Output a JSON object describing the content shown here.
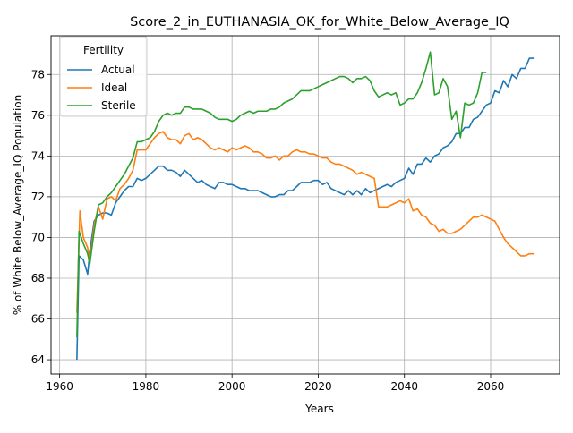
{
  "chart_data": {
    "type": "line",
    "title": "Score_2_in_EUTHANASIA_OK_for_White_Below_Average_IQ",
    "xlabel": "Years",
    "ylabel": "% of White Below_Average_IQ Population",
    "xlim": [
      1958,
      2076
    ],
    "ylim": [
      63.3,
      79.9
    ],
    "xticks": [
      1960,
      1980,
      2000,
      2020,
      2040,
      2060
    ],
    "yticks": [
      64,
      66,
      68,
      70,
      72,
      74,
      76,
      78
    ],
    "grid": true,
    "legend": {
      "title": "Fertility",
      "placement": "top-left"
    },
    "series": [
      {
        "name": "Actual",
        "color": "#1f77b4",
        "points": [
          [
            1964,
            64.0
          ],
          [
            1964.5,
            69.1
          ],
          [
            1965.5,
            68.9
          ],
          [
            1966.5,
            68.2
          ],
          [
            1967,
            69.3
          ],
          [
            1968,
            70.8
          ],
          [
            1969,
            71.1
          ],
          [
            1970,
            71.2
          ],
          [
            1971,
            71.2
          ],
          [
            1972,
            71.1
          ],
          [
            1973,
            71.7
          ],
          [
            1974,
            72.0
          ],
          [
            1975,
            72.3
          ],
          [
            1976,
            72.5
          ],
          [
            1977,
            72.5
          ],
          [
            1978,
            72.9
          ],
          [
            1979,
            72.8
          ],
          [
            1980,
            72.9
          ],
          [
            1981,
            73.1
          ],
          [
            1982,
            73.3
          ],
          [
            1983,
            73.5
          ],
          [
            1984,
            73.5
          ],
          [
            1985,
            73.3
          ],
          [
            1986,
            73.3
          ],
          [
            1987,
            73.2
          ],
          [
            1988,
            73.0
          ],
          [
            1989,
            73.3
          ],
          [
            1990,
            73.1
          ],
          [
            1991,
            72.9
          ],
          [
            1992,
            72.7
          ],
          [
            1993,
            72.8
          ],
          [
            1994,
            72.6
          ],
          [
            1995,
            72.5
          ],
          [
            1996,
            72.4
          ],
          [
            1997,
            72.7
          ],
          [
            1998,
            72.7
          ],
          [
            1999,
            72.6
          ],
          [
            2000,
            72.6
          ],
          [
            2001,
            72.5
          ],
          [
            2002,
            72.4
          ],
          [
            2003,
            72.4
          ],
          [
            2004,
            72.3
          ],
          [
            2005,
            72.3
          ],
          [
            2006,
            72.3
          ],
          [
            2007,
            72.2
          ],
          [
            2008,
            72.1
          ],
          [
            2009,
            72.0
          ],
          [
            2010,
            72.0
          ],
          [
            2011,
            72.1
          ],
          [
            2012,
            72.1
          ],
          [
            2013,
            72.3
          ],
          [
            2014,
            72.3
          ],
          [
            2015,
            72.5
          ],
          [
            2016,
            72.7
          ],
          [
            2017,
            72.7
          ],
          [
            2018,
            72.7
          ],
          [
            2019,
            72.8
          ],
          [
            2020,
            72.8
          ],
          [
            2021,
            72.6
          ],
          [
            2022,
            72.7
          ],
          [
            2023,
            72.4
          ],
          [
            2024,
            72.3
          ],
          [
            2025,
            72.2
          ],
          [
            2026,
            72.1
          ],
          [
            2027,
            72.3
          ],
          [
            2028,
            72.1
          ],
          [
            2029,
            72.3
          ],
          [
            2030,
            72.1
          ],
          [
            2031,
            72.4
          ],
          [
            2032,
            72.2
          ],
          [
            2033,
            72.3
          ],
          [
            2034,
            72.4
          ],
          [
            2035,
            72.5
          ],
          [
            2036,
            72.6
          ],
          [
            2037,
            72.5
          ],
          [
            2038,
            72.7
          ],
          [
            2039,
            72.8
          ],
          [
            2040,
            72.9
          ],
          [
            2041,
            73.4
          ],
          [
            2042,
            73.1
          ],
          [
            2043,
            73.6
          ],
          [
            2044,
            73.6
          ],
          [
            2045,
            73.9
          ],
          [
            2046,
            73.7
          ],
          [
            2047,
            74.0
          ],
          [
            2048,
            74.1
          ],
          [
            2049,
            74.4
          ],
          [
            2050,
            74.5
          ],
          [
            2051,
            74.7
          ],
          [
            2052,
            75.1
          ],
          [
            2053,
            75.1
          ],
          [
            2054,
            75.4
          ],
          [
            2055,
            75.4
          ],
          [
            2056,
            75.8
          ],
          [
            2057,
            75.9
          ],
          [
            2058,
            76.2
          ],
          [
            2059,
            76.5
          ],
          [
            2060,
            76.6
          ],
          [
            2061,
            77.2
          ],
          [
            2062,
            77.1
          ],
          [
            2063,
            77.7
          ],
          [
            2064,
            77.4
          ],
          [
            2065,
            78.0
          ],
          [
            2066,
            77.8
          ],
          [
            2067,
            78.3
          ],
          [
            2068,
            78.3
          ],
          [
            2069,
            78.8
          ],
          [
            2070,
            78.8
          ]
        ]
      },
      {
        "name": "Ideal",
        "color": "#ff7f0e",
        "points": [
          [
            1964,
            66.3
          ],
          [
            1964.7,
            71.3
          ],
          [
            1965.5,
            70.0
          ],
          [
            1966.5,
            69.5
          ],
          [
            1967,
            68.8
          ],
          [
            1968,
            70.6
          ],
          [
            1969,
            71.5
          ],
          [
            1970,
            70.9
          ],
          [
            1971,
            71.9
          ],
          [
            1972,
            72.0
          ],
          [
            1973,
            71.8
          ],
          [
            1974,
            72.4
          ],
          [
            1975,
            72.6
          ],
          [
            1976,
            72.9
          ],
          [
            1977,
            73.3
          ],
          [
            1978,
            74.3
          ],
          [
            1979,
            74.3
          ],
          [
            1980,
            74.3
          ],
          [
            1981,
            74.6
          ],
          [
            1982,
            74.9
          ],
          [
            1983,
            75.1
          ],
          [
            1984,
            75.2
          ],
          [
            1985,
            74.9
          ],
          [
            1986,
            74.8
          ],
          [
            1987,
            74.8
          ],
          [
            1988,
            74.6
          ],
          [
            1989,
            75.0
          ],
          [
            1990,
            75.1
          ],
          [
            1991,
            74.8
          ],
          [
            1992,
            74.9
          ],
          [
            1993,
            74.8
          ],
          [
            1994,
            74.6
          ],
          [
            1995,
            74.4
          ],
          [
            1996,
            74.3
          ],
          [
            1997,
            74.4
          ],
          [
            1998,
            74.3
          ],
          [
            1999,
            74.2
          ],
          [
            2000,
            74.4
          ],
          [
            2001,
            74.3
          ],
          [
            2002,
            74.4
          ],
          [
            2003,
            74.5
          ],
          [
            2004,
            74.4
          ],
          [
            2005,
            74.2
          ],
          [
            2006,
            74.2
          ],
          [
            2007,
            74.1
          ],
          [
            2008,
            73.9
          ],
          [
            2009,
            73.9
          ],
          [
            2010,
            74.0
          ],
          [
            2011,
            73.8
          ],
          [
            2012,
            74.0
          ],
          [
            2013,
            74.0
          ],
          [
            2014,
            74.2
          ],
          [
            2015,
            74.3
          ],
          [
            2016,
            74.2
          ],
          [
            2017,
            74.2
          ],
          [
            2018,
            74.1
          ],
          [
            2019,
            74.1
          ],
          [
            2020,
            74.0
          ],
          [
            2021,
            73.9
          ],
          [
            2022,
            73.9
          ],
          [
            2023,
            73.7
          ],
          [
            2024,
            73.6
          ],
          [
            2025,
            73.6
          ],
          [
            2026,
            73.5
          ],
          [
            2027,
            73.4
          ],
          [
            2028,
            73.3
          ],
          [
            2029,
            73.1
          ],
          [
            2030,
            73.2
          ],
          [
            2031,
            73.1
          ],
          [
            2032,
            73.0
          ],
          [
            2033,
            72.9
          ],
          [
            2034,
            71.5
          ],
          [
            2035,
            71.5
          ],
          [
            2036,
            71.5
          ],
          [
            2037,
            71.6
          ],
          [
            2038,
            71.7
          ],
          [
            2039,
            71.8
          ],
          [
            2040,
            71.7
          ],
          [
            2041,
            71.9
          ],
          [
            2042,
            71.3
          ],
          [
            2043,
            71.4
          ],
          [
            2044,
            71.1
          ],
          [
            2045,
            71.0
          ],
          [
            2046,
            70.7
          ],
          [
            2047,
            70.6
          ],
          [
            2048,
            70.3
          ],
          [
            2049,
            70.4
          ],
          [
            2050,
            70.2
          ],
          [
            2051,
            70.2
          ],
          [
            2052,
            70.3
          ],
          [
            2053,
            70.4
          ],
          [
            2054,
            70.6
          ],
          [
            2055,
            70.8
          ],
          [
            2056,
            71.0
          ],
          [
            2057,
            71.0
          ],
          [
            2058,
            71.1
          ],
          [
            2059,
            71.0
          ],
          [
            2060,
            70.9
          ],
          [
            2061,
            70.8
          ],
          [
            2062,
            70.4
          ],
          [
            2063,
            70.0
          ],
          [
            2064,
            69.7
          ],
          [
            2065,
            69.5
          ],
          [
            2066,
            69.3
          ],
          [
            2067,
            69.1
          ],
          [
            2068,
            69.1
          ],
          [
            2069,
            69.2
          ],
          [
            2070,
            69.2
          ]
        ]
      },
      {
        "name": "Sterile",
        "color": "#2ca02c",
        "points": [
          [
            1964,
            65.1
          ],
          [
            1964.5,
            70.3
          ],
          [
            1965.5,
            69.7
          ],
          [
            1966.5,
            69.2
          ],
          [
            1967,
            68.7
          ],
          [
            1968,
            70.3
          ],
          [
            1969,
            71.6
          ],
          [
            1970,
            71.7
          ],
          [
            1971,
            72.0
          ],
          [
            1972,
            72.2
          ],
          [
            1973,
            72.5
          ],
          [
            1974,
            72.8
          ],
          [
            1975,
            73.1
          ],
          [
            1976,
            73.5
          ],
          [
            1977,
            73.9
          ],
          [
            1978,
            74.7
          ],
          [
            1979,
            74.7
          ],
          [
            1980,
            74.8
          ],
          [
            1981,
            74.9
          ],
          [
            1982,
            75.2
          ],
          [
            1983,
            75.7
          ],
          [
            1984,
            76.0
          ],
          [
            1985,
            76.1
          ],
          [
            1986,
            76.0
          ],
          [
            1987,
            76.1
          ],
          [
            1988,
            76.1
          ],
          [
            1989,
            76.4
          ],
          [
            1990,
            76.4
          ],
          [
            1991,
            76.3
          ],
          [
            1992,
            76.3
          ],
          [
            1993,
            76.3
          ],
          [
            1994,
            76.2
          ],
          [
            1995,
            76.1
          ],
          [
            1996,
            75.9
          ],
          [
            1997,
            75.8
          ],
          [
            1998,
            75.8
          ],
          [
            1999,
            75.8
          ],
          [
            2000,
            75.7
          ],
          [
            2001,
            75.8
          ],
          [
            2002,
            76.0
          ],
          [
            2003,
            76.1
          ],
          [
            2004,
            76.2
          ],
          [
            2005,
            76.1
          ],
          [
            2006,
            76.2
          ],
          [
            2007,
            76.2
          ],
          [
            2008,
            76.2
          ],
          [
            2009,
            76.3
          ],
          [
            2010,
            76.3
          ],
          [
            2011,
            76.4
          ],
          [
            2012,
            76.6
          ],
          [
            2013,
            76.7
          ],
          [
            2014,
            76.8
          ],
          [
            2015,
            77.0
          ],
          [
            2016,
            77.2
          ],
          [
            2017,
            77.2
          ],
          [
            2018,
            77.2
          ],
          [
            2019,
            77.3
          ],
          [
            2020,
            77.4
          ],
          [
            2021,
            77.5
          ],
          [
            2022,
            77.6
          ],
          [
            2023,
            77.7
          ],
          [
            2024,
            77.8
          ],
          [
            2025,
            77.9
          ],
          [
            2026,
            77.9
          ],
          [
            2027,
            77.8
          ],
          [
            2028,
            77.6
          ],
          [
            2029,
            77.8
          ],
          [
            2030,
            77.8
          ],
          [
            2031,
            77.9
          ],
          [
            2032,
            77.7
          ],
          [
            2033,
            77.2
          ],
          [
            2034,
            76.9
          ],
          [
            2035,
            77.0
          ],
          [
            2036,
            77.1
          ],
          [
            2037,
            77.0
          ],
          [
            2038,
            77.1
          ],
          [
            2039,
            76.5
          ],
          [
            2040,
            76.6
          ],
          [
            2041,
            76.8
          ],
          [
            2042,
            76.8
          ],
          [
            2043,
            77.1
          ],
          [
            2044,
            77.6
          ],
          [
            2045,
            78.3
          ],
          [
            2046,
            79.1
          ],
          [
            2047,
            77.0
          ],
          [
            2048,
            77.1
          ],
          [
            2049,
            77.8
          ],
          [
            2050,
            77.4
          ],
          [
            2051,
            75.8
          ],
          [
            2052,
            76.2
          ],
          [
            2053,
            74.9
          ],
          [
            2054,
            76.6
          ],
          [
            2055,
            76.5
          ],
          [
            2056,
            76.6
          ],
          [
            2057,
            77.1
          ],
          [
            2058,
            78.1
          ],
          [
            2059,
            78.1
          ]
        ]
      }
    ]
  }
}
